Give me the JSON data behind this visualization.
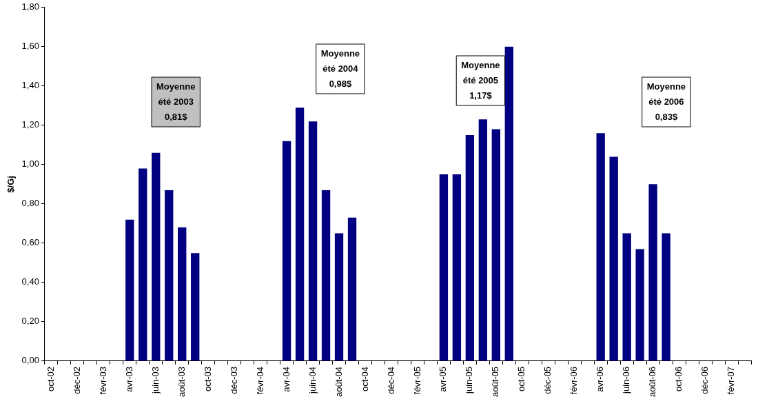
{
  "chart_data": {
    "type": "bar",
    "ylabel": "$/Gj",
    "color": "#000080",
    "categories": [
      "oct-02",
      null,
      "déc-02",
      null,
      "févr-03",
      null,
      "avr-03",
      null,
      "juin-03",
      null,
      "août-03",
      null,
      "oct-03",
      null,
      "déc-03",
      null,
      "févr-04",
      null,
      "avr-04",
      null,
      "juin-04",
      null,
      "août-04",
      null,
      "oct-04",
      null,
      "déc-04",
      null,
      "févr-05",
      null,
      "avr-05",
      null,
      "juin-05",
      null,
      "août-05",
      null,
      "oct-05",
      null,
      "déc-05",
      null,
      "févr-06",
      null,
      "avr-06",
      null,
      "juin-06",
      null,
      "août-06",
      null,
      "oct-06",
      null,
      "déc-06",
      null,
      "févr-07",
      null
    ],
    "values": [
      null,
      null,
      null,
      null,
      null,
      null,
      0.72,
      0.98,
      1.06,
      0.87,
      0.68,
      0.55,
      null,
      null,
      null,
      null,
      null,
      null,
      1.12,
      1.29,
      1.22,
      0.87,
      0.65,
      0.73,
      null,
      null,
      null,
      null,
      null,
      null,
      0.95,
      0.95,
      1.15,
      1.23,
      1.18,
      1.6,
      null,
      null,
      null,
      null,
      null,
      null,
      1.16,
      1.04,
      0.65,
      0.57,
      0.9,
      0.65,
      null,
      null,
      null,
      null,
      null,
      null
    ],
    "ylim": [
      0,
      1.8
    ],
    "yticks": [
      {
        "value": 0,
        "label": "0,00"
      },
      {
        "value": 0.2,
        "label": "0,20"
      },
      {
        "value": 0.4,
        "label": "0,40"
      },
      {
        "value": 0.6,
        "label": "0,60"
      },
      {
        "value": 0.8,
        "label": "0,80"
      },
      {
        "value": 1.0,
        "label": "1,00"
      },
      {
        "value": 1.2,
        "label": "1,20"
      },
      {
        "value": 1.4,
        "label": "1,40"
      },
      {
        "value": 1.6,
        "label": "1,60"
      },
      {
        "value": 1.8,
        "label": "1,80"
      }
    ],
    "grid": false,
    "legend": false,
    "annotations": [
      "Moyenne\nété 2003\n0,81$",
      "Moyenne\nété 2004\n0,98$",
      "Moyenne\nété 2005\n1,17$",
      "Moyenne\nété 2006\n0,83$"
    ]
  }
}
